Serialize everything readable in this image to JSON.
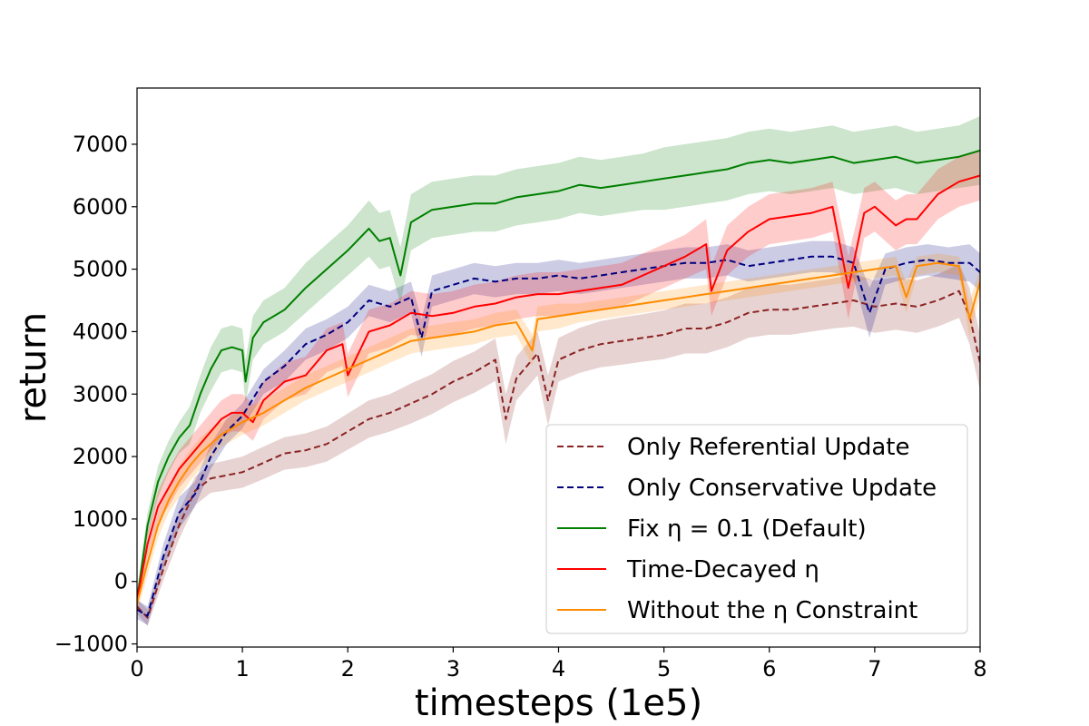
{
  "chart_data": {
    "type": "line",
    "title": "",
    "xlabel": "timesteps (1e5)",
    "ylabel": "return",
    "xlim": [
      0,
      8
    ],
    "ylim": [
      -1050,
      7900
    ],
    "x_ticks": [
      0,
      1,
      2,
      3,
      4,
      5,
      6,
      7,
      8
    ],
    "x_tick_labels": [
      "0",
      "1",
      "2",
      "3",
      "4",
      "5",
      "6",
      "7",
      "8"
    ],
    "y_ticks": [
      -1000,
      0,
      1000,
      2000,
      3000,
      4000,
      5000,
      6000,
      7000
    ],
    "y_tick_labels": [
      "−1000",
      "0",
      "1000",
      "2000",
      "3000",
      "4000",
      "5000",
      "6000",
      "7000"
    ],
    "grid": false,
    "legend_position": "bottom-right",
    "series": [
      {
        "name": "Only Referential Update",
        "color": "#8b2323",
        "dash": "dashed",
        "x": [
          0,
          0.1,
          0.25,
          0.4,
          0.55,
          0.7,
          0.85,
          1.0,
          1.2,
          1.4,
          1.6,
          1.8,
          2.0,
          2.2,
          2.4,
          2.6,
          2.8,
          3.0,
          3.2,
          3.4,
          3.5,
          3.6,
          3.8,
          3.9,
          4.0,
          4.2,
          4.4,
          4.6,
          4.8,
          5.0,
          5.2,
          5.4,
          5.6,
          5.8,
          6.0,
          6.2,
          6.4,
          6.6,
          6.8,
          7.0,
          7.2,
          7.4,
          7.6,
          7.8,
          7.9,
          8.0
        ],
        "y": [
          -400,
          -580,
          200,
          900,
          1450,
          1650,
          1700,
          1750,
          1900,
          2050,
          2100,
          2200,
          2400,
          2600,
          2700,
          2850,
          3000,
          3200,
          3350,
          3550,
          2600,
          3250,
          3650,
          2900,
          3550,
          3700,
          3800,
          3850,
          3900,
          3950,
          4050,
          4050,
          4150,
          4300,
          4350,
          4350,
          4400,
          4450,
          4500,
          4400,
          4450,
          4400,
          4500,
          4650,
          4250,
          3500
        ],
        "band": [
          120,
          130,
          180,
          220,
          230,
          230,
          240,
          250,
          260,
          260,
          270,
          280,
          290,
          300,
          300,
          320,
          320,
          330,
          330,
          340,
          400,
          350,
          350,
          400,
          350,
          360,
          370,
          380,
          380,
          390,
          400,
          400,
          400,
          400,
          400,
          400,
          400,
          400,
          420,
          420,
          420,
          420,
          420,
          430,
          450,
          450
        ]
      },
      {
        "name": "Only Conservative Update",
        "color": "#00007f",
        "dash": "dashed",
        "x": [
          0,
          0.1,
          0.25,
          0.4,
          0.55,
          0.7,
          0.85,
          1.0,
          1.2,
          1.4,
          1.6,
          1.8,
          2.0,
          2.2,
          2.4,
          2.6,
          2.7,
          2.8,
          3.0,
          3.2,
          3.4,
          3.6,
          3.8,
          4.0,
          4.2,
          4.4,
          4.6,
          4.8,
          5.0,
          5.2,
          5.4,
          5.6,
          5.8,
          6.0,
          6.2,
          6.4,
          6.6,
          6.8,
          6.95,
          7.1,
          7.3,
          7.5,
          7.7,
          7.9,
          8.0
        ],
        "y": [
          -450,
          -550,
          400,
          1100,
          1400,
          2000,
          2400,
          2650,
          3200,
          3450,
          3800,
          3950,
          4150,
          4500,
          4400,
          4550,
          3900,
          4650,
          4750,
          4850,
          4800,
          4850,
          4850,
          4900,
          4850,
          4900,
          4950,
          5000,
          5050,
          5100,
          5100,
          5150,
          5050,
          5100,
          5150,
          5200,
          5200,
          5100,
          4300,
          5000,
          5100,
          5150,
          5100,
          5100,
          4950
        ],
        "band": [
          150,
          150,
          200,
          250,
          200,
          200,
          200,
          200,
          200,
          250,
          250,
          250,
          250,
          250,
          250,
          250,
          300,
          250,
          250,
          250,
          250,
          250,
          250,
          250,
          250,
          250,
          250,
          250,
          250,
          250,
          250,
          250,
          250,
          250,
          250,
          250,
          250,
          250,
          400,
          250,
          250,
          250,
          250,
          300,
          300
        ]
      },
      {
        "name": "Fix η = 0.1 (Default)",
        "color": "#007f00",
        "dash": "solid",
        "x": [
          0,
          0.1,
          0.2,
          0.3,
          0.4,
          0.5,
          0.6,
          0.7,
          0.8,
          0.9,
          1.0,
          1.03,
          1.1,
          1.2,
          1.4,
          1.6,
          1.8,
          2.0,
          2.2,
          2.3,
          2.4,
          2.5,
          2.6,
          2.8,
          3.0,
          3.2,
          3.4,
          3.6,
          3.8,
          4.0,
          4.2,
          4.4,
          4.6,
          4.8,
          5.0,
          5.2,
          5.4,
          5.6,
          5.8,
          6.0,
          6.2,
          6.4,
          6.6,
          6.8,
          7.0,
          7.2,
          7.4,
          7.6,
          7.8,
          8.0
        ],
        "y": [
          -300,
          900,
          1600,
          2000,
          2300,
          2500,
          3000,
          3400,
          3700,
          3750,
          3700,
          3200,
          3900,
          4150,
          4350,
          4700,
          5000,
          5300,
          5650,
          5450,
          5500,
          4900,
          5750,
          5950,
          6000,
          6050,
          6050,
          6150,
          6200,
          6250,
          6350,
          6300,
          6350,
          6400,
          6450,
          6500,
          6550,
          6600,
          6700,
          6750,
          6700,
          6750,
          6800,
          6700,
          6750,
          6800,
          6700,
          6750,
          6800,
          6900
        ],
        "band": [
          150,
          200,
          250,
          250,
          250,
          300,
          300,
          350,
          350,
          350,
          350,
          350,
          350,
          350,
          350,
          400,
          400,
          400,
          450,
          450,
          450,
          450,
          450,
          450,
          450,
          450,
          450,
          450,
          450,
          450,
          450,
          450,
          450,
          450,
          500,
          500,
          500,
          500,
          500,
          500,
          500,
          500,
          500,
          500,
          500,
          500,
          500,
          500,
          500,
          550
        ]
      },
      {
        "name": "Time-Decayed η",
        "color": "#ff0000",
        "dash": "solid",
        "x": [
          0,
          0.1,
          0.2,
          0.3,
          0.4,
          0.5,
          0.6,
          0.7,
          0.8,
          0.9,
          1.0,
          1.1,
          1.2,
          1.4,
          1.6,
          1.8,
          1.95,
          2.0,
          2.2,
          2.4,
          2.6,
          2.8,
          3.0,
          3.2,
          3.4,
          3.6,
          3.8,
          4.0,
          4.2,
          4.4,
          4.6,
          4.8,
          5.0,
          5.2,
          5.4,
          5.45,
          5.6,
          5.8,
          6.0,
          6.2,
          6.4,
          6.6,
          6.75,
          6.9,
          7.0,
          7.2,
          7.3,
          7.4,
          7.6,
          7.8,
          8.0
        ],
        "y": [
          -300,
          600,
          1200,
          1500,
          1800,
          2000,
          2200,
          2400,
          2600,
          2700,
          2700,
          2550,
          2900,
          3200,
          3300,
          3700,
          3800,
          3300,
          4000,
          4100,
          4300,
          4250,
          4300,
          4400,
          4450,
          4550,
          4600,
          4600,
          4650,
          4700,
          4750,
          4900,
          5050,
          5200,
          5400,
          4650,
          5300,
          5600,
          5800,
          5850,
          5900,
          6000,
          4700,
          5900,
          6000,
          5700,
          5800,
          5800,
          6200,
          6400,
          6500
        ],
        "band": [
          150,
          200,
          250,
          300,
          300,
          300,
          300,
          300,
          300,
          300,
          300,
          300,
          300,
          300,
          300,
          350,
          350,
          350,
          350,
          350,
          350,
          350,
          350,
          350,
          350,
          350,
          350,
          350,
          350,
          350,
          350,
          350,
          350,
          350,
          400,
          400,
          400,
          400,
          400,
          400,
          400,
          400,
          500,
          400,
          400,
          400,
          400,
          400,
          400,
          400,
          400
        ]
      },
      {
        "name": "Without the η Constraint",
        "color": "#ff8c00",
        "dash": "solid",
        "x": [
          0,
          0.1,
          0.2,
          0.3,
          0.4,
          0.5,
          0.6,
          0.7,
          0.8,
          0.9,
          1.0,
          1.2,
          1.4,
          1.6,
          1.8,
          2.0,
          2.2,
          2.4,
          2.6,
          2.8,
          3.0,
          3.2,
          3.4,
          3.6,
          3.75,
          3.8,
          4.0,
          4.2,
          4.4,
          4.6,
          4.8,
          5.0,
          5.2,
          5.4,
          5.6,
          5.8,
          6.0,
          6.2,
          6.4,
          6.6,
          6.8,
          7.0,
          7.2,
          7.3,
          7.4,
          7.6,
          7.8,
          7.9,
          8.0
        ],
        "y": [
          -350,
          300,
          900,
          1300,
          1600,
          1850,
          2050,
          2200,
          2350,
          2450,
          2550,
          2700,
          2900,
          3100,
          3250,
          3400,
          3550,
          3700,
          3850,
          3900,
          3950,
          4000,
          4100,
          4150,
          3700,
          4200,
          4250,
          4300,
          4350,
          4400,
          4450,
          4500,
          4550,
          4600,
          4650,
          4700,
          4750,
          4800,
          4850,
          4900,
          4950,
          5000,
          5050,
          4550,
          5050,
          5100,
          5050,
          4200,
          4800
        ],
        "band": [
          150,
          200,
          200,
          200,
          250,
          250,
          250,
          250,
          200,
          200,
          200,
          200,
          200,
          200,
          200,
          200,
          200,
          200,
          200,
          200,
          200,
          200,
          200,
          200,
          250,
          200,
          200,
          150,
          150,
          150,
          150,
          150,
          150,
          150,
          150,
          150,
          150,
          150,
          150,
          150,
          150,
          150,
          150,
          250,
          150,
          150,
          150,
          300,
          200
        ]
      }
    ]
  }
}
